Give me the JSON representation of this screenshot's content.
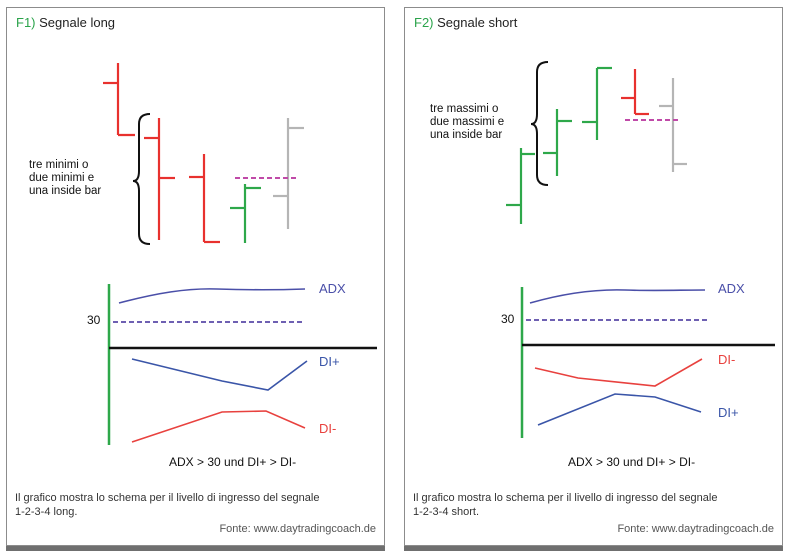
{
  "panels": [
    {
      "id": "F1)",
      "title": "Segnale long",
      "pattern_label": [
        "tre minimi o",
        "due minimi e",
        "una inside bar"
      ],
      "adx_label": "ADX",
      "level_label": "30",
      "line_a_label": "DI+",
      "line_b_label": "DI-",
      "condition": "ADX > 30 und DI+ > DI-",
      "caption_line1": "Il grafico mostra lo schema per il livello di ingresso del segnale",
      "caption_line2": "1-2-3-4 long.",
      "source": "Fonte: www.daytradingcoach.de"
    },
    {
      "id": "F2)",
      "title": "Segnale short",
      "pattern_label": [
        "tre massimi o",
        "due massimi e",
        "una inside bar"
      ],
      "adx_label": "ADX",
      "level_label": "30",
      "line_a_label": "DI-",
      "line_b_label": "DI+",
      "condition": "ADX > 30 und DI+ > DI-",
      "caption_line1": "Il grafico mostra lo schema per il livello di ingresso del segnale",
      "caption_line2": "1-2-3-4 short.",
      "source": "Fonte: www.daytradingcoach.de"
    }
  ],
  "colors": {
    "red_bar": "#e8312e",
    "green_bar": "#2ea84a",
    "gray_bar": "#b5b5b5",
    "entry_line": "#c04aa8",
    "adx_line": "#4a4fa8",
    "level_line": "#5a4aa8",
    "di_plus_line": "#3a55a8",
    "di_minus_line": "#e8413e",
    "axis": "#111111",
    "brace": "#111111"
  }
}
